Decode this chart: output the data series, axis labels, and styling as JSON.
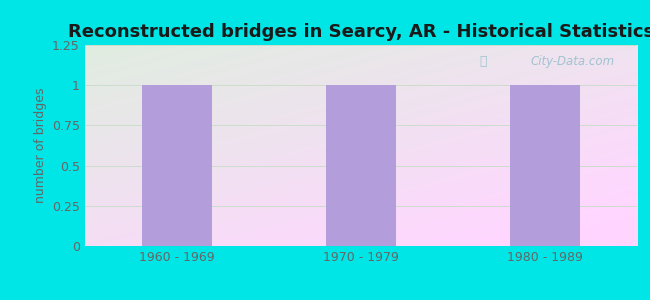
{
  "title": "Reconstructed bridges in Searcy, AR - Historical Statistics",
  "categories": [
    "1960 - 1969",
    "1970 - 1979",
    "1980 - 1989"
  ],
  "values": [
    1,
    1,
    1
  ],
  "bar_color": "#b39ddb",
  "ylabel": "number of bridges",
  "ylim": [
    0,
    1.25
  ],
  "yticks": [
    0,
    0.25,
    0.5,
    0.75,
    1,
    1.25
  ],
  "background_outer": "#00e5e5",
  "background_grad_top": "#e0f2e0",
  "background_grad_bottom": "#e8f8f8",
  "title_fontsize": 13,
  "ylabel_fontsize": 9,
  "tick_fontsize": 9,
  "tick_color": "#666666",
  "watermark_text": "City-Data.com",
  "watermark_color": "#99bfcc",
  "grid_color": "#ccddcc",
  "bar_width": 0.38
}
